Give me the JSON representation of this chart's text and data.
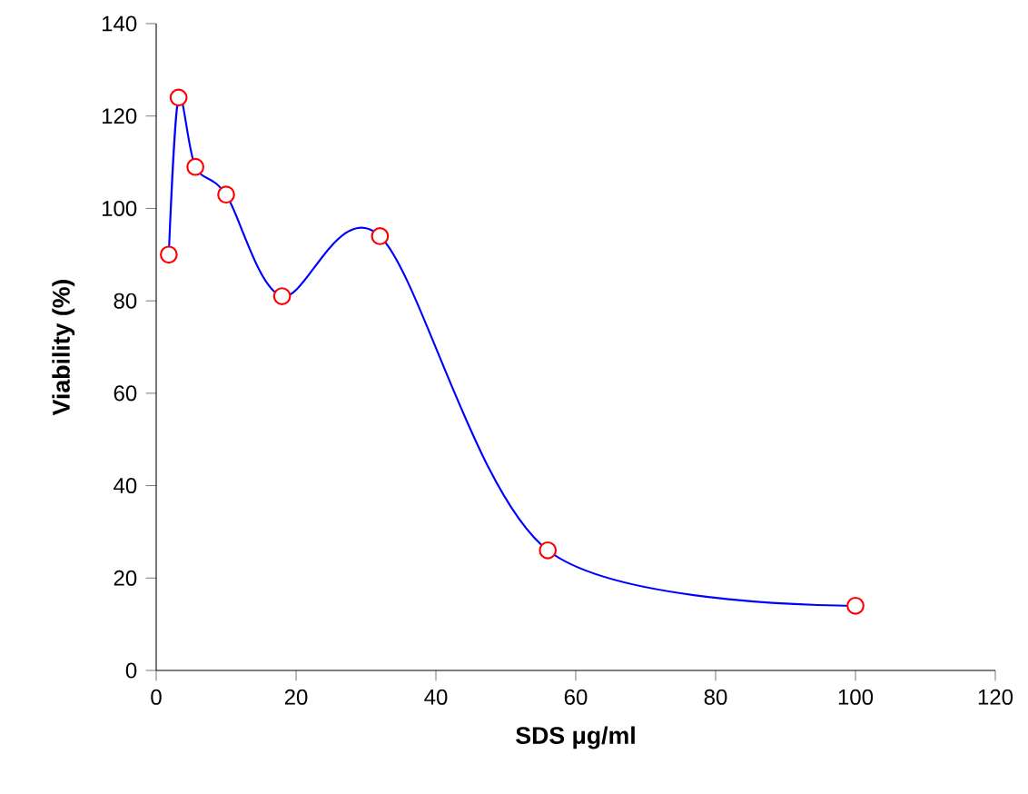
{
  "chart_data": {
    "type": "line",
    "xlabel": "SDS μg/ml",
    "ylabel": "Viability (%)",
    "x": [
      1.8,
      3.2,
      5.6,
      10,
      18,
      32,
      56,
      100
    ],
    "series": [
      {
        "color": "#0000ff",
        "values": [
          90,
          124,
          109,
          103,
          81,
          94,
          26,
          14
        ]
      }
    ],
    "marker": "circle",
    "line_style": "solid",
    "grid": false,
    "xlim": [
      0,
      120
    ],
    "xticks": [
      0,
      20,
      40,
      60,
      80,
      100,
      120
    ],
    "ylim": [
      0,
      140
    ],
    "yticks": [
      0,
      20,
      40,
      60,
      80,
      100,
      120,
      140
    ]
  }
}
